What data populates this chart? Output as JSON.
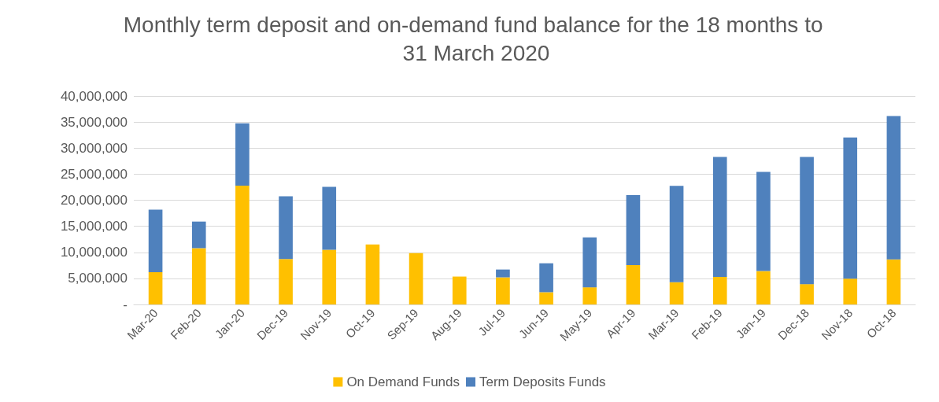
{
  "chart_data": {
    "type": "bar",
    "stacked": true,
    "title": "Monthly term deposit and on-demand fund balance for the 18 months to 31 March 2020",
    "categories": [
      "Mar-20",
      "Feb-20",
      "Jan-20",
      "Dec-19",
      "Nov-19",
      "Oct-19",
      "Sep-19",
      "Aug-19",
      "Jul-19",
      "Jun-19",
      "May-19",
      "Apr-19",
      "Mar-19",
      "Feb-19",
      "Jan-19",
      "Dec-18",
      "Nov-18",
      "Oct-18"
    ],
    "series": [
      {
        "name": "On Demand Funds",
        "color": "#ffc000",
        "values": [
          6200000,
          10800000,
          22800000,
          8700000,
          10500000,
          11500000,
          9850000,
          5350000,
          5200000,
          2350000,
          3300000,
          7550000,
          4250000,
          5300000,
          6400000,
          3900000,
          4950000,
          8650000
        ]
      },
      {
        "name": "Term Deposits Funds",
        "color": "#4f81bd",
        "values": [
          12000000,
          5100000,
          11950000,
          12050000,
          12050000,
          0,
          0,
          0,
          1500000,
          5550000,
          9550000,
          13450000,
          18500000,
          23000000,
          19050000,
          24400000,
          27100000,
          27500000
        ]
      }
    ],
    "ylim": [
      0,
      40000000
    ],
    "yticks": [
      {
        "value": 0,
        "label": "-"
      },
      {
        "value": 5000000,
        "label": "5,000,000"
      },
      {
        "value": 10000000,
        "label": "10,000,000"
      },
      {
        "value": 15000000,
        "label": "15,000,000"
      },
      {
        "value": 20000000,
        "label": "20,000,000"
      },
      {
        "value": 25000000,
        "label": "25,000,000"
      },
      {
        "value": 30000000,
        "label": "30,000,000"
      },
      {
        "value": 35000000,
        "label": "35,000,000"
      },
      {
        "value": 40000000,
        "label": "40,000,000"
      }
    ],
    "grid": "y",
    "legend": "bottom"
  }
}
